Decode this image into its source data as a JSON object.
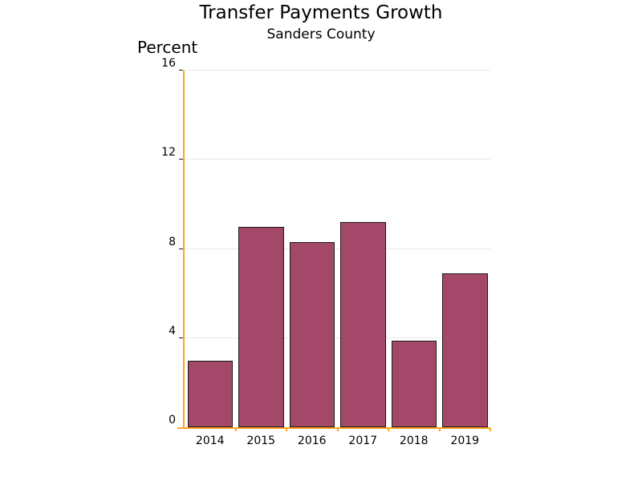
{
  "chart_data": {
    "type": "bar",
    "title": "Transfer Payments Growth",
    "subtitle": "Sanders County",
    "ylabel": "Percent",
    "xlabel": "",
    "categories": [
      "2014",
      "2015",
      "2016",
      "2017",
      "2018",
      "2019"
    ],
    "values": [
      3.0,
      9.0,
      8.3,
      9.2,
      3.9,
      6.9
    ],
    "ylim": [
      0,
      16
    ],
    "yticks": [
      0,
      4,
      8,
      12,
      16
    ],
    "grid": true,
    "legend_position": "none",
    "colors": {
      "bar_fill": "#A34869",
      "bar_border": "#1A1A1A",
      "axis": "#FFA41B",
      "gridline": "#E8E8E8",
      "tick_mark": "#1A1A1A",
      "text": "#000000",
      "background": "#FFFFFF"
    }
  }
}
